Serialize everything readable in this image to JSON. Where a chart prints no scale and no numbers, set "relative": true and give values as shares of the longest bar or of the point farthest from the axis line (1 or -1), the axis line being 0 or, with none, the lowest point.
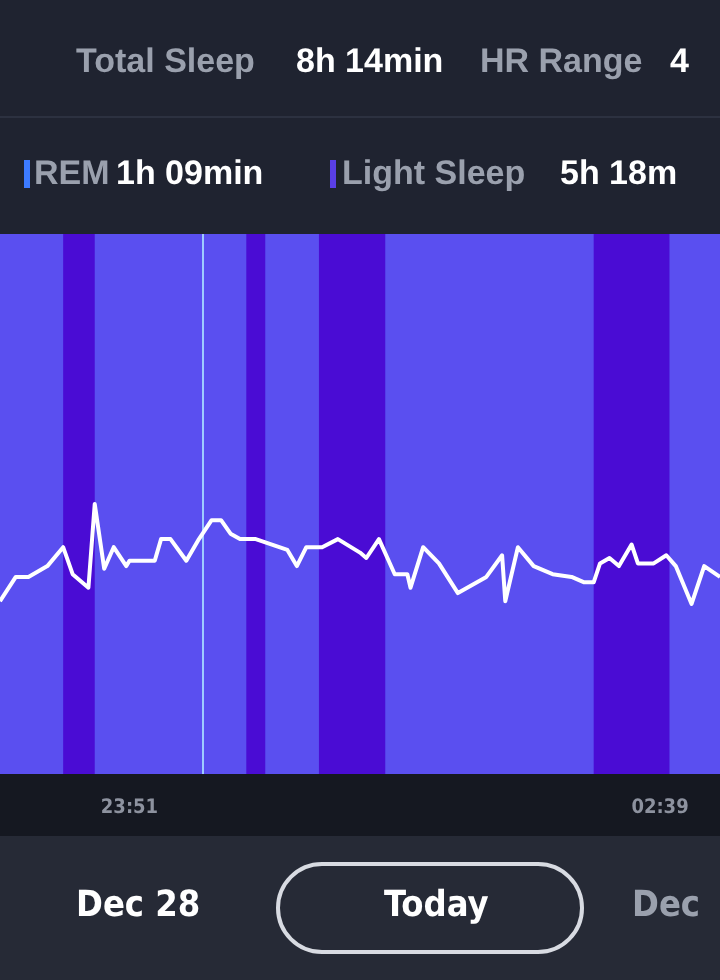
{
  "chart_data": {
    "type": "line",
    "relative": true,
    "marker": "none",
    "grid": false,
    "tick_labels": "x",
    "annotations": [
      "Total Sleep",
      "8h 14min",
      "HR Range",
      "4",
      "REM",
      "1h 09min",
      "Light Sleep",
      "5h 18m",
      "Dec 28",
      "Today",
      "Dec"
    ],
    "xlim": [
      "--12-28T23:10",
      "--12-29T02:58"
    ],
    "xticks": [
      {
        "value": "--12-28T23:51",
        "label": "23:51"
      },
      {
        "value": "--12-29T02:39",
        "label": "02:39"
      }
    ],
    "bands": [
      {
        "axis": "x",
        "from": "--12-28T23:30",
        "to": "--12-28T23:40",
        "color": "#4a0cd4"
      },
      {
        "axis": "x",
        "from": "--12-29T00:28",
        "to": "--12-29T00:34",
        "color": "#4a0cd4"
      },
      {
        "axis": "x",
        "from": "--12-29T00:51",
        "to": "--12-29T01:12",
        "color": "#4a0cd4"
      },
      {
        "axis": "x",
        "from": "--12-29T02:18",
        "to": "--12-29T02:42",
        "color": "#4a0cd4"
      }
    ],
    "ref_lines": [
      {
        "axis": "x",
        "value": "--12-29T00:14",
        "color": "#9ecbff"
      }
    ],
    "series": [
      {
        "color": "#ffffff",
        "x": [
          "--12-28T23:10",
          "--12-28T23:15",
          "--12-28T23:19",
          "--12-28T23:25",
          "--12-28T23:30",
          "--12-28T23:33",
          "--12-28T23:38",
          "--12-28T23:40",
          "--12-28T23:43",
          "--12-28T23:46",
          "--12-28T23:50",
          "--12-28T23:51",
          "--12-28T23:59",
          "--12-29T00:01",
          "--12-29T00:04",
          "--12-29T00:09",
          "--12-29T00:13",
          "--12-29T00:17",
          "--12-29T00:20",
          "--12-29T00:23",
          "--12-29T00:26",
          "--12-29T00:31",
          "--12-29T00:41",
          "--12-29T00:44",
          "--12-29T00:47",
          "--12-29T00:52",
          "--12-29T00:57",
          "--12-29T01:04",
          "--12-29T01:06",
          "--12-29T01:10",
          "--12-29T01:15",
          "--12-29T01:19",
          "--12-29T01:20",
          "--12-29T01:24",
          "--12-29T01:29",
          "--12-29T01:35",
          "--12-29T01:44",
          "--12-29T01:49",
          "--12-29T01:50",
          "--12-29T01:54",
          "--12-29T01:59",
          "--12-29T02:05",
          "--12-29T02:11",
          "--12-29T02:15",
          "--12-29T02:18",
          "--12-29T02:20",
          "--12-29T02:23",
          "--12-29T02:26",
          "--12-29T02:30",
          "--12-29T02:32",
          "--12-29T02:37",
          "--12-29T02:41",
          "--12-29T02:44",
          "--12-29T02:49",
          "--12-29T02:53",
          "--12-29T02:58"
        ],
        "values": [
          0.64,
          0.73,
          0.73,
          0.77,
          0.84,
          0.74,
          0.69,
          1,
          0.76,
          0.84,
          0.77,
          0.79,
          0.79,
          0.87,
          0.87,
          0.79,
          0.87,
          0.94,
          0.94,
          0.89,
          0.87,
          0.87,
          0.83,
          0.77,
          0.84,
          0.84,
          0.87,
          0.82,
          0.8,
          0.87,
          0.74,
          0.74,
          0.69,
          0.84,
          0.78,
          0.67,
          0.73,
          0.81,
          0.64,
          0.84,
          0.77,
          0.74,
          0.73,
          0.71,
          0.71,
          0.78,
          0.8,
          0.77,
          0.85,
          0.78,
          0.78,
          0.81,
          0.77,
          0.63,
          0.77,
          0.73
        ]
      }
    ]
  }
}
